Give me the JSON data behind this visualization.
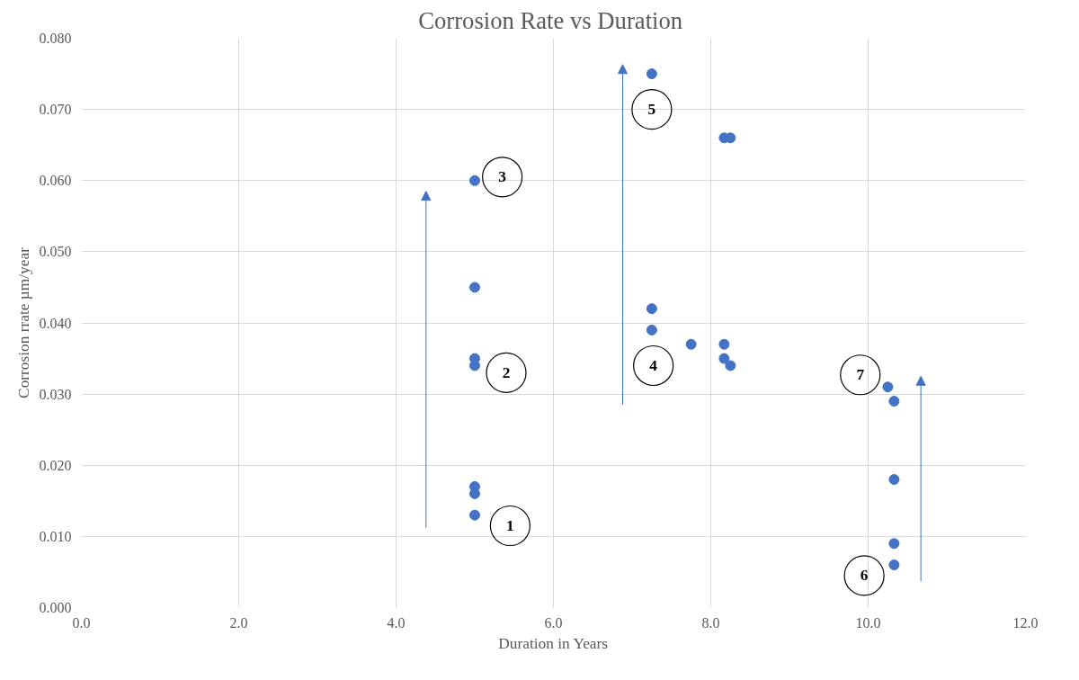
{
  "chart_data": {
    "type": "scatter",
    "title": "Corrosion  Rate vs Duration",
    "xlabel": "Duration in Years",
    "ylabel": "Corrosion rrate µm/year",
    "x": [
      5.0,
      5.0,
      5.0,
      5.0,
      5.0,
      5.0,
      5.0,
      7.25,
      7.25,
      7.25,
      7.75,
      8.17,
      8.17,
      8.17,
      8.25,
      8.25,
      10.25,
      10.33,
      10.33,
      10.33,
      10.33
    ],
    "values": [
      0.06,
      0.045,
      0.035,
      0.034,
      0.017,
      0.016,
      0.013,
      0.075,
      0.042,
      0.039,
      0.037,
      0.066,
      0.037,
      0.035,
      0.066,
      0.034,
      0.031,
      0.029,
      0.018,
      0.009,
      0.006
    ],
    "color": "#4472c4",
    "marker": "circle",
    "grid": true,
    "xlim": [
      0,
      12
    ],
    "xticks": [
      {
        "value": 0,
        "label": "0.0"
      },
      {
        "value": 2,
        "label": "2.0"
      },
      {
        "value": 4,
        "label": "4.0"
      },
      {
        "value": 6,
        "label": "6.0"
      },
      {
        "value": 8,
        "label": "8.0"
      },
      {
        "value": 10,
        "label": "10.0"
      },
      {
        "value": 12,
        "label": "12.0"
      }
    ],
    "ylim": [
      0,
      0.08
    ],
    "yticks": [
      {
        "value": 0,
        "label": "0.000"
      },
      {
        "value": 0.01,
        "label": "0.010"
      },
      {
        "value": 0.02,
        "label": "0.020"
      },
      {
        "value": 0.03,
        "label": "0.030"
      },
      {
        "value": 0.04,
        "label": "0.040"
      },
      {
        "value": 0.05,
        "label": "0.050"
      },
      {
        "value": 0.06,
        "label": "0.060"
      },
      {
        "value": 0.07,
        "label": "0.070"
      },
      {
        "value": 0.08,
        "label": "0.080"
      }
    ],
    "annotations": [
      {
        "text": "1",
        "x": 5.45,
        "y": 0.0115
      },
      {
        "text": "2",
        "x": 5.4,
        "y": 0.033
      },
      {
        "text": "3",
        "x": 5.35,
        "y": 0.0605
      },
      {
        "text": "4",
        "x": 7.27,
        "y": 0.034
      },
      {
        "text": "5",
        "x": 7.25,
        "y": 0.07
      },
      {
        "text": "6",
        "x": 9.95,
        "y": 0.0045
      },
      {
        "text": "7",
        "x": 9.9,
        "y": 0.0327
      }
    ]
  }
}
